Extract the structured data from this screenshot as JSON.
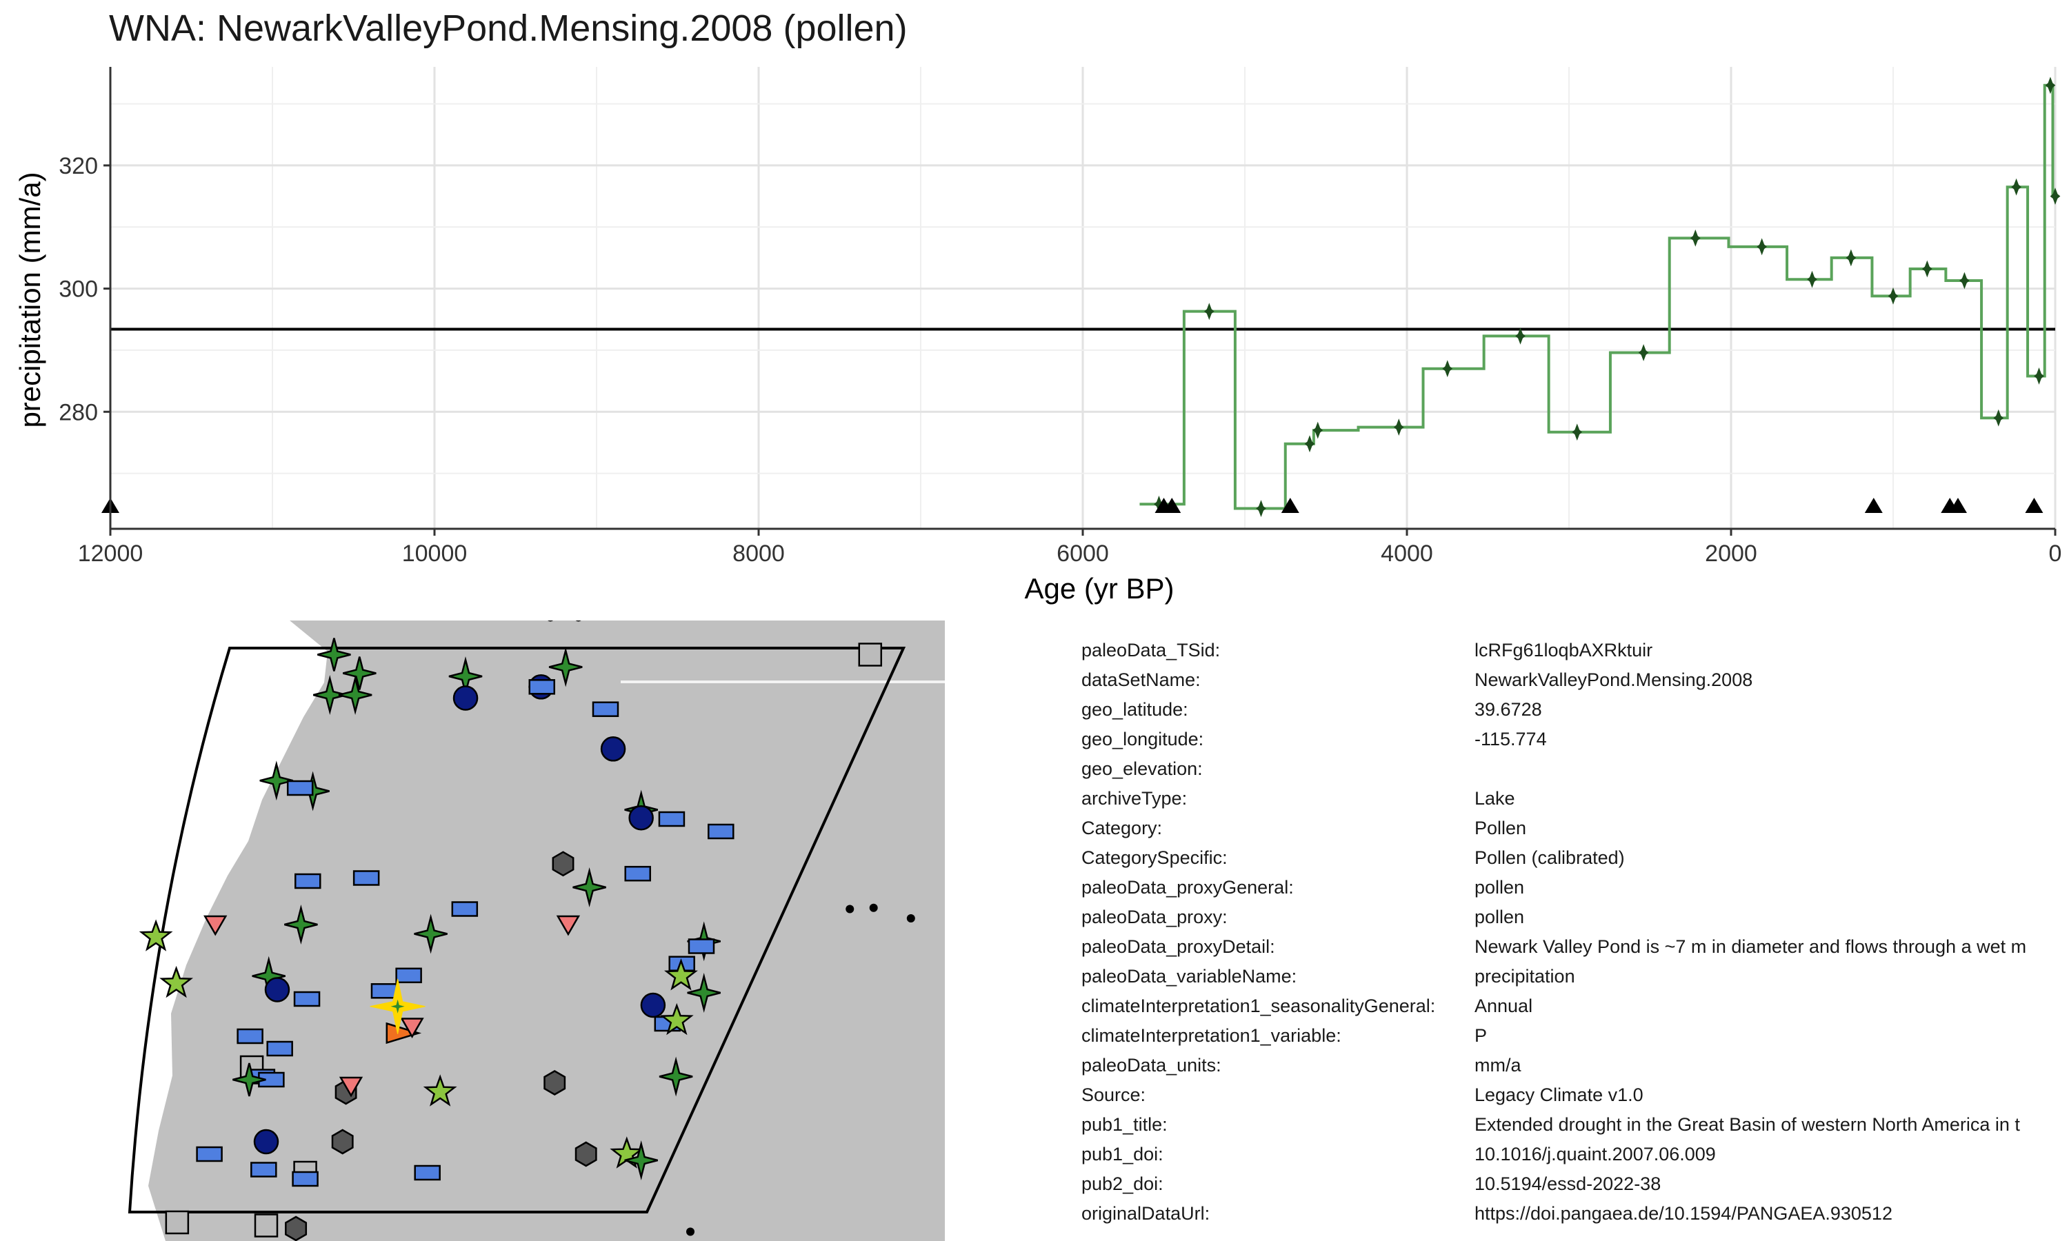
{
  "title": "WNA: NewarkValleyPond.Mensing.2008 (pollen)",
  "chart_data": {
    "type": "line",
    "title": "WNA: NewarkValleyPond.Mensing.2008 (pollen)",
    "xlabel": "Age (yr BP)",
    "ylabel": "precipitation (mm/a)",
    "x_reversed": true,
    "xlim": [
      12000,
      0
    ],
    "ylim": [
      261,
      336
    ],
    "x_ticks": [
      12000,
      10000,
      8000,
      6000,
      4000,
      2000,
      0
    ],
    "y_ticks": [
      280,
      300,
      320
    ],
    "grid": true,
    "step": true,
    "mean_line": 293.4,
    "series": [
      {
        "color": "#5aa35a",
        "marker_color": "#1d4d1d",
        "points": [
          {
            "x": 5530,
            "y": 265
          },
          {
            "x": 5220,
            "y": 296.3
          },
          {
            "x": 4900,
            "y": 264.3
          },
          {
            "x": 4600,
            "y": 274.8
          },
          {
            "x": 4550,
            "y": 277
          },
          {
            "x": 4050,
            "y": 277.5
          },
          {
            "x": 3750,
            "y": 287
          },
          {
            "x": 3300,
            "y": 292.3
          },
          {
            "x": 2950,
            "y": 276.7
          },
          {
            "x": 2540,
            "y": 289.6
          },
          {
            "x": 2220,
            "y": 308.2
          },
          {
            "x": 1810,
            "y": 306.8
          },
          {
            "x": 1500,
            "y": 301.5
          },
          {
            "x": 1260,
            "y": 305
          },
          {
            "x": 1000,
            "y": 298.8
          },
          {
            "x": 790,
            "y": 303.2
          },
          {
            "x": 560,
            "y": 301.3
          },
          {
            "x": 350,
            "y": 279
          },
          {
            "x": 240,
            "y": 316.5
          },
          {
            "x": 100,
            "y": 285.8
          },
          {
            "x": 30,
            "y": 333
          },
          {
            "x": 0,
            "y": 315
          }
        ]
      }
    ],
    "age_markers": [
      12000,
      5500,
      5450,
      4720,
      1120,
      650,
      600,
      130
    ]
  },
  "map": {
    "site_color": "#ffd700",
    "land_color": "#c0c0c0",
    "markers": [
      {
        "type": "star4",
        "color": "#2e8b2e",
        "x": 0.28,
        "y": 0.055
      },
      {
        "type": "star4",
        "color": "#2e8b2e",
        "x": 0.31,
        "y": 0.085
      },
      {
        "type": "star4",
        "color": "#2e8b2e",
        "x": 0.275,
        "y": 0.12
      },
      {
        "type": "star4",
        "color": "#2e8b2e",
        "x": 0.305,
        "y": 0.12
      },
      {
        "type": "star4",
        "color": "#2e8b2e",
        "x": 0.435,
        "y": 0.09
      },
      {
        "type": "star4",
        "color": "#2e8b2e",
        "x": 0.553,
        "y": 0.075
      },
      {
        "type": "circle",
        "color": "#0b1b80",
        "x": 0.435,
        "y": 0.125
      },
      {
        "type": "circle",
        "color": "#0b1b80",
        "x": 0.524,
        "y": 0.107
      },
      {
        "type": "rect",
        "color": "#4f7fe0",
        "x": 0.525,
        "y": 0.107
      },
      {
        "type": "rect",
        "color": "#4f7fe0",
        "x": 0.6,
        "y": 0.143
      },
      {
        "type": "circle",
        "color": "#0b1b80",
        "x": 0.609,
        "y": 0.207
      },
      {
        "type": "star4",
        "color": "#2e8b2e",
        "x": 0.212,
        "y": 0.258
      },
      {
        "type": "star4",
        "color": "#2e8b2e",
        "x": 0.255,
        "y": 0.275
      },
      {
        "type": "rect",
        "color": "#4f7fe0",
        "x": 0.24,
        "y": 0.27
      },
      {
        "type": "star4",
        "color": "#2e8b2e",
        "x": 0.642,
        "y": 0.305
      },
      {
        "type": "circle",
        "color": "#0b1b80",
        "x": 0.642,
        "y": 0.318
      },
      {
        "type": "rect",
        "color": "#4f7fe0",
        "x": 0.678,
        "y": 0.32
      },
      {
        "type": "rect",
        "color": "#4f7fe0",
        "x": 0.736,
        "y": 0.34
      },
      {
        "type": "rect",
        "color": "#4f7fe0",
        "x": 0.249,
        "y": 0.42
      },
      {
        "type": "rect",
        "color": "#4f7fe0",
        "x": 0.318,
        "y": 0.415
      },
      {
        "type": "hex",
        "color": "#555555",
        "x": 0.55,
        "y": 0.392
      },
      {
        "type": "rect",
        "color": "#4f7fe0",
        "x": 0.638,
        "y": 0.408
      },
      {
        "type": "star4",
        "color": "#2e8b2e",
        "x": 0.581,
        "y": 0.43
      },
      {
        "type": "rect",
        "color": "#4f7fe0",
        "x": 0.434,
        "y": 0.465
      },
      {
        "type": "star5",
        "color": "#8cc63f",
        "x": 0.07,
        "y": 0.51
      },
      {
        "type": "tri_down",
        "color": "#f07878",
        "x": 0.14,
        "y": 0.49
      },
      {
        "type": "star4",
        "color": "#2e8b2e",
        "x": 0.241,
        "y": 0.49
      },
      {
        "type": "star4",
        "color": "#2e8b2e",
        "x": 0.394,
        "y": 0.505
      },
      {
        "type": "tri_down",
        "color": "#f07878",
        "x": 0.556,
        "y": 0.49
      },
      {
        "type": "star4",
        "color": "#2e8b2e",
        "x": 0.716,
        "y": 0.517
      },
      {
        "type": "rect",
        "color": "#4f7fe0",
        "x": 0.713,
        "y": 0.525
      },
      {
        "type": "rect",
        "color": "#4f7fe0",
        "x": 0.69,
        "y": 0.553
      },
      {
        "type": "star5",
        "color": "#8cc63f",
        "x": 0.689,
        "y": 0.573
      },
      {
        "type": "star4",
        "color": "#2e8b2e",
        "x": 0.716,
        "y": 0.6
      },
      {
        "type": "star5",
        "color": "#8cc63f",
        "x": 0.094,
        "y": 0.585
      },
      {
        "type": "star4",
        "color": "#2e8b2e",
        "x": 0.203,
        "y": 0.573
      },
      {
        "type": "circle",
        "color": "#0b1b80",
        "x": 0.213,
        "y": 0.595
      },
      {
        "type": "rect",
        "color": "#4f7fe0",
        "x": 0.248,
        "y": 0.61
      },
      {
        "type": "rect",
        "color": "#4f7fe0",
        "x": 0.368,
        "y": 0.572
      },
      {
        "type": "rect",
        "color": "#4f7fe0",
        "x": 0.339,
        "y": 0.597
      },
      {
        "type": "circle",
        "color": "#0b1b80",
        "x": 0.656,
        "y": 0.62
      },
      {
        "type": "rect",
        "color": "#4f7fe0",
        "x": 0.673,
        "y": 0.65
      },
      {
        "type": "star5",
        "color": "#8cc63f",
        "x": 0.684,
        "y": 0.645
      },
      {
        "type": "tri_right",
        "color": "#f07020",
        "x": 0.36,
        "y": 0.665
      },
      {
        "type": "tri_down",
        "color": "#f07878",
        "x": 0.372,
        "y": 0.655
      },
      {
        "type": "rect",
        "color": "#4f7fe0",
        "x": 0.181,
        "y": 0.67
      },
      {
        "type": "rect",
        "color": "#4f7fe0",
        "x": 0.216,
        "y": 0.69
      },
      {
        "type": "square",
        "color": "#bbbbbb",
        "x": 0.183,
        "y": 0.72
      },
      {
        "type": "rect",
        "color": "#4f7fe0",
        "x": 0.195,
        "y": 0.735
      },
      {
        "type": "rect",
        "color": "#4f7fe0",
        "x": 0.206,
        "y": 0.74
      },
      {
        "type": "star4",
        "color": "#2e8b2e",
        "x": 0.18,
        "y": 0.74
      },
      {
        "type": "hex",
        "color": "#555555",
        "x": 0.294,
        "y": 0.76
      },
      {
        "type": "tri_down",
        "color": "#f07878",
        "x": 0.3,
        "y": 0.75
      },
      {
        "type": "star5",
        "color": "#8cc63f",
        "x": 0.405,
        "y": 0.76
      },
      {
        "type": "hex",
        "color": "#555555",
        "x": 0.54,
        "y": 0.745
      },
      {
        "type": "star4",
        "color": "#2e8b2e",
        "x": 0.683,
        "y": 0.735
      },
      {
        "type": "circle",
        "color": "#0b1b80",
        "x": 0.2,
        "y": 0.84
      },
      {
        "type": "hex",
        "color": "#555555",
        "x": 0.29,
        "y": 0.84
      },
      {
        "type": "rect",
        "color": "#4f7fe0",
        "x": 0.133,
        "y": 0.86
      },
      {
        "type": "hex",
        "color": "#555555",
        "x": 0.577,
        "y": 0.86
      },
      {
        "type": "star5",
        "color": "#8cc63f",
        "x": 0.625,
        "y": 0.86
      },
      {
        "type": "star4",
        "color": "#2e8b2e",
        "x": 0.642,
        "y": 0.87
      },
      {
        "type": "rect",
        "color": "#4f7fe0",
        "x": 0.197,
        "y": 0.885
      },
      {
        "type": "square",
        "color": "#bbbbbb",
        "x": 0.246,
        "y": 0.89
      },
      {
        "type": "rect",
        "color": "#4f7fe0",
        "x": 0.246,
        "y": 0.9
      },
      {
        "type": "rect",
        "color": "#4f7fe0",
        "x": 0.39,
        "y": 0.89
      },
      {
        "type": "square",
        "color": "#bbbbbb",
        "x": 0.095,
        "y": 0.97
      },
      {
        "type": "square",
        "color": "#bbbbbb",
        "x": 0.2,
        "y": 0.975
      },
      {
        "type": "hex",
        "color": "#555555",
        "x": 0.235,
        "y": 0.98
      },
      {
        "type": "square",
        "color": "#bbbbbb",
        "x": 0.912,
        "y": 0.055
      },
      {
        "type": "dot",
        "color": "#000000",
        "x": 0.535,
        "y": -0.005
      },
      {
        "type": "dot",
        "color": "#000000",
        "x": 0.568,
        "y": -0.005
      },
      {
        "type": "dot",
        "color": "#000000",
        "x": 0.888,
        "y": 0.465
      },
      {
        "type": "dot",
        "color": "#000000",
        "x": 0.916,
        "y": 0.463
      },
      {
        "type": "dot",
        "color": "#000000",
        "x": 0.96,
        "y": 0.48
      },
      {
        "type": "dot",
        "color": "#000000",
        "x": 0.7,
        "y": 0.985
      },
      {
        "type": "dot",
        "color": "#000000",
        "x": 0.74,
        "y": 1.01
      },
      {
        "type": "dot",
        "color": "#000000",
        "x": 0.16,
        "y": 1.01
      },
      {
        "type": "dot",
        "color": "#000000",
        "x": 0.177,
        "y": 1.01
      },
      {
        "type": "dot",
        "color": "#000000",
        "x": 0.212,
        "y": 1.03
      }
    ]
  },
  "metadata": [
    {
      "key": "paleoData_TSid:",
      "value": "lcRFg61loqbAXRktuir"
    },
    {
      "key": "dataSetName:",
      "value": "NewarkValleyPond.Mensing.2008"
    },
    {
      "key": "geo_latitude:",
      "value": "39.6728"
    },
    {
      "key": "geo_longitude:",
      "value": "-115.774"
    },
    {
      "key": "geo_elevation:",
      "value": ""
    },
    {
      "key": "archiveType:",
      "value": "Lake"
    },
    {
      "key": "Category:",
      "value": "Pollen"
    },
    {
      "key": "CategorySpecific:",
      "value": "Pollen (calibrated)"
    },
    {
      "key": "paleoData_proxyGeneral:",
      "value": "pollen"
    },
    {
      "key": "paleoData_proxy:",
      "value": "pollen"
    },
    {
      "key": "paleoData_proxyDetail:",
      "value": "Newark Valley Pond is ~7 m in diameter and flows through a wet m"
    },
    {
      "key": "paleoData_variableName:",
      "value": "precipitation"
    },
    {
      "key": "climateInterpretation1_seasonalityGeneral:",
      "value": "Annual"
    },
    {
      "key": "climateInterpretation1_variable:",
      "value": "P"
    },
    {
      "key": "paleoData_units:",
      "value": "mm/a"
    },
    {
      "key": "Source:",
      "value": "Legacy Climate v1.0"
    },
    {
      "key": "pub1_title:",
      "value": "Extended drought in the Great Basin of western North America in t"
    },
    {
      "key": "pub1_doi:",
      "value": "10.1016/j.quaint.2007.06.009"
    },
    {
      "key": "pub2_doi:",
      "value": "10.5194/essd-2022-38"
    },
    {
      "key": "originalDataUrl:",
      "value": "https://doi.pangaea.de/10.1594/PANGAEA.930512"
    }
  ]
}
